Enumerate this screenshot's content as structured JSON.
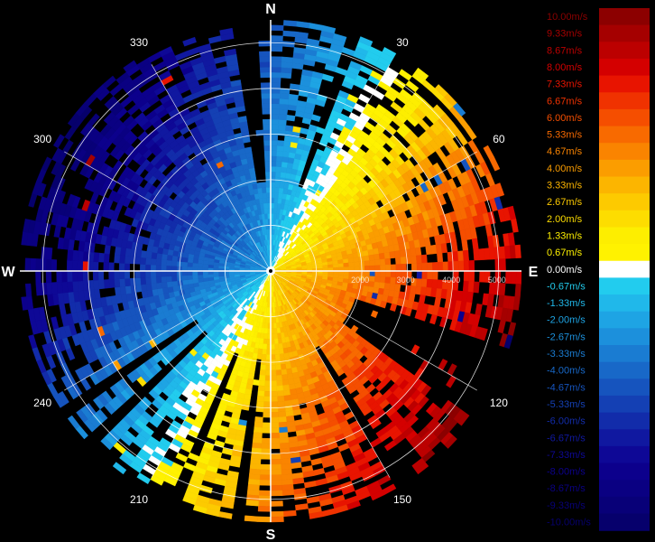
{
  "chart_data": {
    "type": "polar-doppler-velocity",
    "cardinal_labels": [
      {
        "text": "N",
        "azimuth": 0
      },
      {
        "text": "E",
        "azimuth": 90
      },
      {
        "text": "S",
        "azimuth": 180
      },
      {
        "text": "W",
        "azimuth": 270
      }
    ],
    "angle_labels": [
      {
        "text": "30",
        "azimuth": 30
      },
      {
        "text": "60",
        "azimuth": 60
      },
      {
        "text": "120",
        "azimuth": 120
      },
      {
        "text": "150",
        "azimuth": 150
      },
      {
        "text": "210",
        "azimuth": 210
      },
      {
        "text": "240",
        "azimuth": 240
      },
      {
        "text": "300",
        "azimuth": 300
      },
      {
        "text": "330",
        "azimuth": 330
      }
    ],
    "range_rings": [
      1000,
      2000,
      3000,
      4000,
      5000
    ],
    "range_labels": [
      "2000",
      "3000",
      "4000",
      "5000"
    ],
    "max_range": 5500,
    "wind_direction_from_deg": 300,
    "wind_speed_max": 10.0,
    "colorbar": {
      "min": -10.0,
      "max": 10.0,
      "labels": [
        "10.00m/s",
        "9.33m/s",
        "8.67m/s",
        "8.00m/s",
        "7.33m/s",
        "6.67m/s",
        "6.00m/s",
        "5.33m/s",
        "4.67m/s",
        "4.00m/s",
        "3.33m/s",
        "2.67m/s",
        "2.00m/s",
        "1.33m/s",
        "0.67m/s",
        "0.00m/s",
        "-0.67m/s",
        "-1.33m/s",
        "-2.00m/s",
        "-2.67m/s",
        "-3.33m/s",
        "-4.00m/s",
        "-4.67m/s",
        "-5.33m/s",
        "-6.00m/s",
        "-6.67m/s",
        "-7.33m/s",
        "-8.00m/s",
        "-8.67m/s",
        "-9.33m/s",
        "-10.00m/s"
      ],
      "colors": [
        "#8c0000",
        "#a50000",
        "#bc0000",
        "#d40000",
        "#e81400",
        "#f03200",
        "#f54e00",
        "#f86a00",
        "#fa8400",
        "#fb9d00",
        "#fcb500",
        "#fdca00",
        "#fddd00",
        "#fdee00",
        "#fff200",
        "#ffffff",
        "#22ccee",
        "#20b8ea",
        "#1ea4e4",
        "#1c90dc",
        "#1a7cd2",
        "#1868c8",
        "#1654be",
        "#1440b4",
        "#122caa",
        "#1018a0",
        "#0e0896",
        "#0c008c",
        "#0a0082",
        "#080078",
        "#06006c"
      ]
    }
  }
}
